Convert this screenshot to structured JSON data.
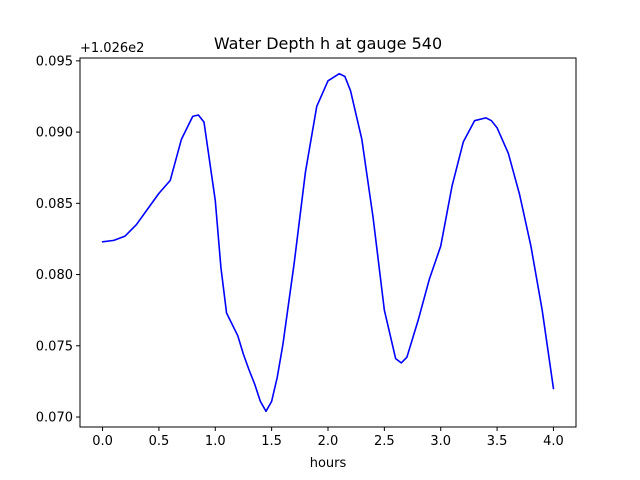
{
  "chart_data": {
    "type": "line",
    "title": "Water Depth h at gauge 540",
    "xlabel": "hours",
    "ylabel": "",
    "offset_label": "+1.026e2",
    "xlim": [
      -0.2,
      4.2
    ],
    "ylim": [
      0.0693,
      0.0952
    ],
    "xticks": [
      0.0,
      0.5,
      1.0,
      1.5,
      2.0,
      2.5,
      3.0,
      3.5,
      4.0
    ],
    "xtick_labels": [
      "0.0",
      "0.5",
      "1.0",
      "1.5",
      "2.0",
      "2.5",
      "3.0",
      "3.5",
      "4.0"
    ],
    "yticks": [
      0.07,
      0.075,
      0.08,
      0.085,
      0.09,
      0.095
    ],
    "ytick_labels": [
      "0.070",
      "0.075",
      "0.080",
      "0.085",
      "0.090",
      "0.095"
    ],
    "grid": false,
    "line_color": "#0000ff",
    "series": [
      {
        "x": [
          0.0,
          0.1,
          0.2,
          0.3,
          0.4,
          0.5,
          0.6,
          0.7,
          0.8,
          0.85,
          0.9,
          1.0,
          1.05,
          1.1,
          1.2,
          1.25,
          1.3,
          1.35,
          1.4,
          1.45,
          1.5,
          1.55,
          1.6,
          1.7,
          1.8,
          1.9,
          2.0,
          2.1,
          2.15,
          2.2,
          2.3,
          2.4,
          2.5,
          2.6,
          2.65,
          2.7,
          2.8,
          2.9,
          3.0,
          3.1,
          3.2,
          3.3,
          3.4,
          3.45,
          3.5,
          3.6,
          3.7,
          3.8,
          3.9,
          4.0
        ],
        "y": [
          0.0823,
          0.0824,
          0.0827,
          0.0835,
          0.0846,
          0.0857,
          0.0866,
          0.0895,
          0.0911,
          0.0912,
          0.0907,
          0.0852,
          0.0805,
          0.0773,
          0.0757,
          0.0744,
          0.0733,
          0.0723,
          0.0711,
          0.0704,
          0.0711,
          0.0728,
          0.0751,
          0.0808,
          0.0872,
          0.0918,
          0.0936,
          0.0941,
          0.0939,
          0.0929,
          0.0895,
          0.084,
          0.0775,
          0.0741,
          0.0738,
          0.0742,
          0.0768,
          0.0797,
          0.082,
          0.0862,
          0.0893,
          0.0908,
          0.091,
          0.0908,
          0.0903,
          0.0885,
          0.0856,
          0.082,
          0.0775,
          0.072
        ]
      }
    ]
  }
}
